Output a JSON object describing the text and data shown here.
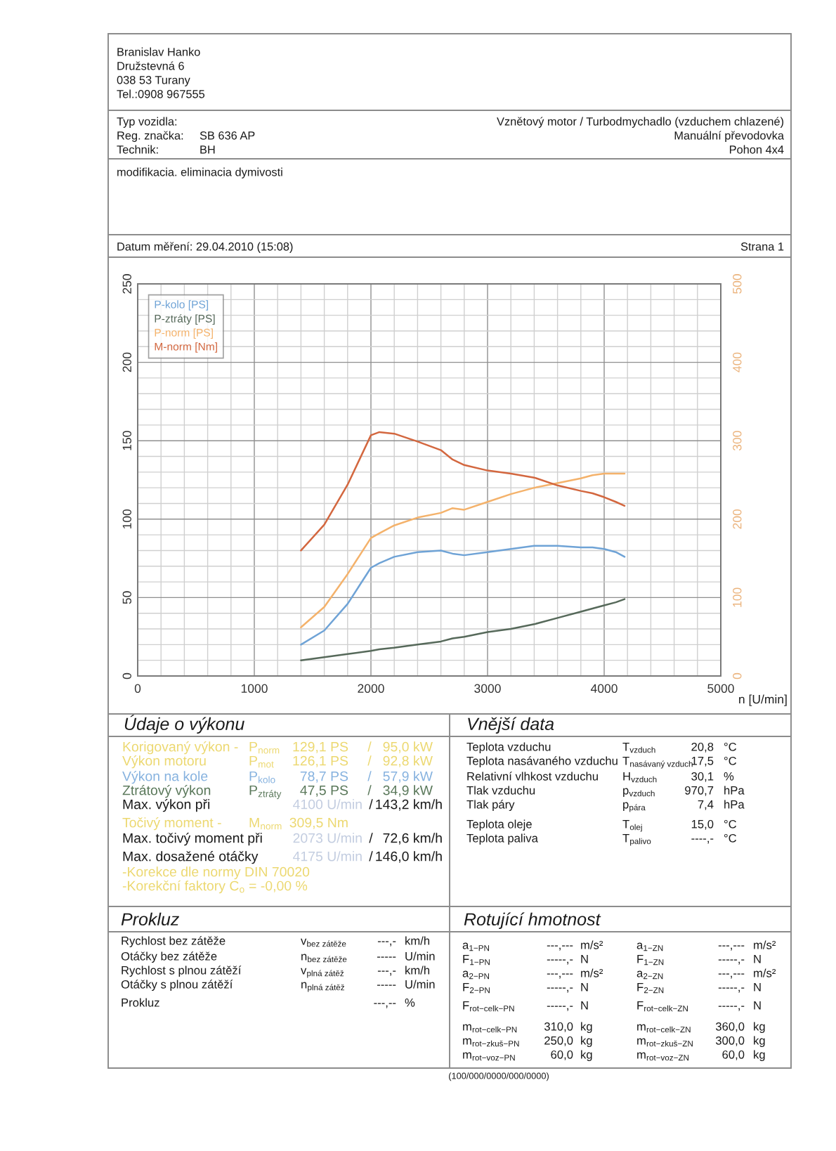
{
  "chart_data": {
    "type": "line",
    "x": [
      1400,
      1600,
      1800,
      2000,
      2073,
      2200,
      2400,
      2600,
      2700,
      2800,
      3000,
      3200,
      3400,
      3600,
      3800,
      3900,
      4000,
      4100,
      4175
    ],
    "xlim": [
      0,
      5000
    ],
    "xticks": [
      0,
      {
        "value": 200,
        "label": null
      },
      {
        "value": 400,
        "label": null
      },
      {
        "value": 600,
        "label": null
      },
      {
        "value": 800,
        "label": null
      },
      1000,
      {
        "value": 1200,
        "label": null
      },
      {
        "value": 1400,
        "label": null
      },
      {
        "value": 1600,
        "label": null
      },
      {
        "value": 1800,
        "label": null
      },
      2000,
      {
        "value": 2200,
        "label": null
      },
      {
        "value": 2400,
        "label": null
      },
      {
        "value": 2600,
        "label": null
      },
      {
        "value": 2800,
        "label": null
      },
      3000,
      {
        "value": 3200,
        "label": null
      },
      {
        "value": 3400,
        "label": null
      },
      {
        "value": 3600,
        "label": null
      },
      {
        "value": 3800,
        "label": null
      },
      4000,
      {
        "value": 4200,
        "label": null
      },
      {
        "value": 4400,
        "label": null
      },
      {
        "value": 4600,
        "label": null
      },
      {
        "value": 4800,
        "label": null
      },
      5000
    ],
    "ylim": [
      0,
      250
    ],
    "yticks": [
      0,
      {
        "value": 10,
        "label": null
      },
      {
        "value": 20,
        "label": null
      },
      {
        "value": 30,
        "label": null
      },
      {
        "value": 40,
        "label": null
      },
      50,
      {
        "value": 60,
        "label": null
      },
      {
        "value": 70,
        "label": null
      },
      {
        "value": 80,
        "label": null
      },
      {
        "value": 90,
        "label": null
      },
      100,
      {
        "value": 110,
        "label": null
      },
      {
        "value": 120,
        "label": null
      },
      {
        "value": 130,
        "label": null
      },
      {
        "value": 140,
        "label": null
      },
      150,
      {
        "value": 160,
        "label": null
      },
      {
        "value": 170,
        "label": null
      },
      {
        "value": 180,
        "label": null
      },
      {
        "value": 190,
        "label": null
      },
      200,
      {
        "value": 210,
        "label": null
      },
      {
        "value": 220,
        "label": null
      },
      {
        "value": 230,
        "label": null
      },
      {
        "value": 240,
        "label": null
      },
      250
    ],
    "y2lim": [
      0,
      500
    ],
    "y2ticks": [
      0,
      100,
      200,
      300,
      400,
      500
    ],
    "xlabel": "n [U/min]",
    "series": [
      {
        "name": "P-kolo [PS]",
        "color": "#6fa3d6",
        "values": [
          20,
          29,
          46,
          69,
          72,
          76,
          79,
          80,
          78,
          77,
          79,
          81,
          83,
          83,
          82,
          82,
          81,
          79,
          76
        ]
      },
      {
        "name": "P-ztráty [PS]",
        "color": "#56695a",
        "values": [
          10,
          12,
          14,
          16,
          17,
          18,
          20,
          22,
          24,
          25,
          28,
          30,
          33,
          37,
          41,
          43,
          45,
          47,
          49
        ]
      },
      {
        "name": "P-norm [PS]",
        "color": "#f4b26b",
        "values": [
          31,
          44,
          65,
          88,
          91,
          96,
          101,
          104,
          107,
          106,
          111,
          116,
          120,
          123,
          126,
          128,
          129,
          129,
          129
        ]
      },
      {
        "name": "M-norm [Nm]",
        "color": "#d3673f",
        "axis": "y2",
        "values": [
          160,
          193,
          244,
          307,
          311,
          309,
          299,
          288,
          276,
          269,
          262,
          258,
          253,
          243,
          236,
          233,
          228,
          222,
          217
        ]
      }
    ],
    "legend": "top left",
    "grid": true,
    "annotations": [
      "Branislav Hanko",
      "Družstevná 6",
      "038 53 Turany",
      "Tel.:0908 967555",
      "Typ vozidla:",
      "Reg. značka:",
      "SB 636 AP",
      "Technik:",
      "BH",
      "Vznětový motor / Turbodmychadlo (vzduchem chlazené)",
      "Manuální převodovka",
      "Pohon 4x4",
      "modifikacia. eliminacia dymivosti",
      "Datum měření: 29.04.2010 (15:08)",
      "Strana 1",
      "Údaje o výkonu",
      "Korigovaný výkon -",
      "P$_{norm}$",
      "129,1 PS",
      "/",
      "95,0 kW",
      "Výkon motoru",
      "P$_{mot}$",
      "126,1 PS",
      "/",
      "92,8 kW",
      "Výkon na kole",
      "P$_{kolo}$",
      "78,7 PS",
      "/",
      "57,9 kW",
      "Ztrátový výkon",
      "P$_{ztráty}$",
      "47,5 PS",
      "/",
      "34,9 kW",
      "Max. výkon při",
      "4100 U/min",
      "/",
      "143,2 km/h",
      "Točivý moment -",
      "M$_{norm}$",
      "309,5 Nm",
      "Max. točivý moment při",
      "2073 U/min",
      "/",
      "72,6 km/h",
      "Max. dosažené otáčky",
      "4175 U/min",
      "/",
      "146,0 km/h",
      "-Korekce dle normy DIN 70020",
      "-Korekční faktory C$_{o}$ = -0,00 %",
      "Vnější data",
      "Teplota vzduchu",
      "T$_{vzduch}$",
      "20,8",
      "°C",
      "Teplota nasávaného vzduchu",
      "T$_{nasávaný vzduch}$",
      "17,5",
      "°C",
      "Relativní vlhkost vzduchu",
      "H$_{vzduch}$",
      "30,1",
      "%",
      "Tlak vzduchu",
      "p$_{vzduch}$",
      "970,7",
      "hPa",
      "Tlak páry",
      "p$_{pára}$",
      "7,4",
      "hPa",
      "Teplota oleje",
      "T$_{olej}$",
      "15,0",
      "°C",
      "Teplota paliva",
      "T$_{palivo}$",
      "----,-",
      "°C",
      "Prokluz",
      "Rychlost bez zátěže",
      "v$_{bez zátěže}$",
      "---,-",
      "km/h",
      "Otáčky bez zátěže",
      "n$_{bez zátěže}$",
      "-----",
      "U/min",
      "Rychlost s plnou zátěží",
      "v$_{plná zátěž}$",
      "---,-",
      "km/h",
      "Otáčky s plnou zátěží",
      "n$_{plná zátěž}$",
      "-----",
      "U/min",
      "Prokluz",
      "---,--",
      "%",
      "Rotující hmotnost",
      "a$_{1−PN}$",
      "---,---",
      "m/s²",
      "a$_{1−ZN}$",
      "---,---",
      "m/s²",
      "F$_{1−PN}$",
      "-----,-",
      "N",
      "F$_{1−ZN}$",
      "-----,-",
      "N",
      "a$_{2−PN}$",
      "---,---",
      "m/s²",
      "a$_{2−ZN}$",
      "---,---",
      "m/s²",
      "F$_{2−PN}$",
      "-----,-",
      "N",
      "F$_{2−ZN}$",
      "-----,-",
      "N",
      "F$_{rot−celk−PN}$",
      "-----,-",
      "N",
      "F$_{rot−celk−ZN}$",
      "-----,-",
      "N",
      "m$_{rot−celk−PN}$",
      "310,0",
      "kg",
      "m$_{rot−celk−ZN}$",
      "360,0",
      "kg",
      "m$_{rot−zkuš−PN}$",
      "250,0",
      "kg",
      "m$_{rot−zkuš−ZN}$",
      "300,0",
      "kg",
      "m$_{rot−voz−PN}$",
      "60,0",
      "kg",
      "m$_{rot−voz−ZN}$",
      "60,0",
      "kg",
      "(100/000/0000/000/0000)"
    ]
  }
}
